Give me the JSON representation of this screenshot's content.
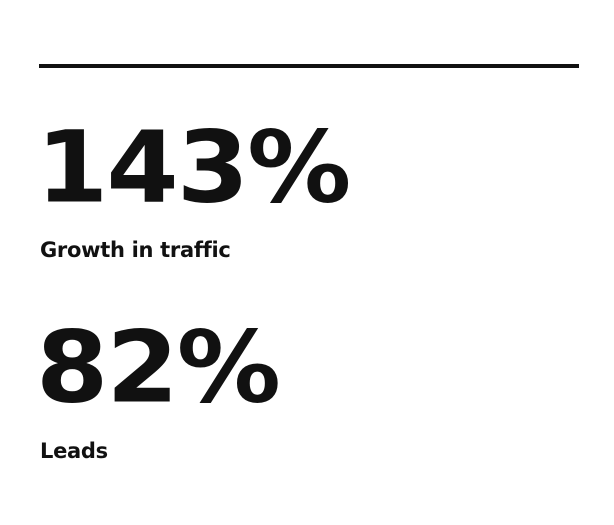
{
  "stats": [
    {
      "value": "143%",
      "label": "Growth in traffic"
    },
    {
      "value": "82%",
      "label": "Leads"
    }
  ]
}
